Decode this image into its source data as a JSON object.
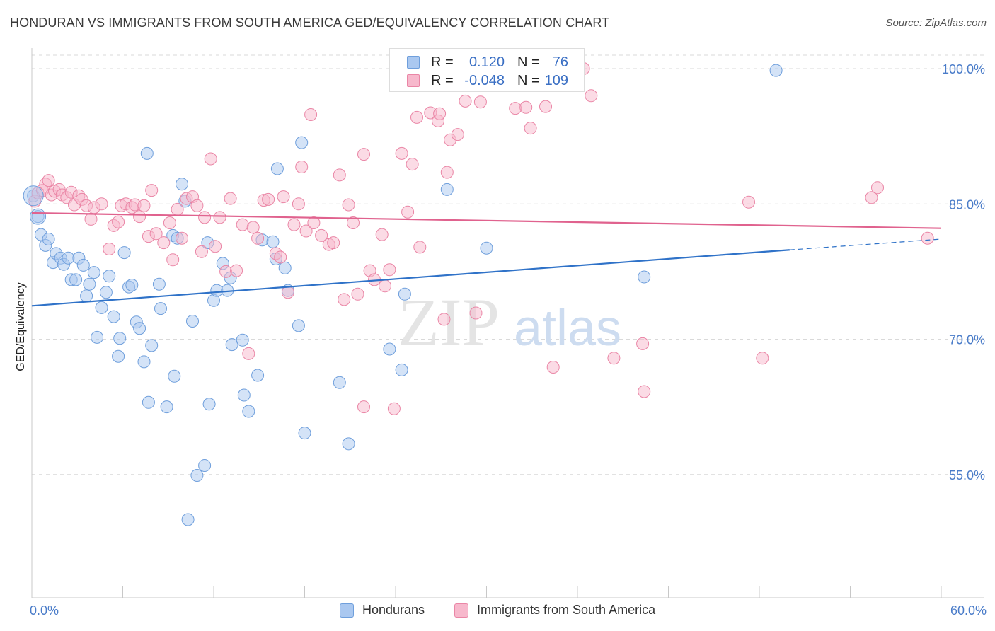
{
  "header": {
    "title": "HONDURAN VS IMMIGRANTS FROM SOUTH AMERICA GED/EQUIVALENCY CORRELATION CHART",
    "source": "Source: ZipAtlas.com"
  },
  "watermark": {
    "zip": "ZIP",
    "atlas": "atlas"
  },
  "legend_top": {
    "rows": [
      {
        "r_label": "R =",
        "r_value": "0.120",
        "n_label": "N =",
        "n_value": "76"
      },
      {
        "r_label": "R =",
        "r_value": "-0.048",
        "n_label": "N =",
        "n_value": "109"
      }
    ]
  },
  "legend_bottom": {
    "items": [
      {
        "label": "Hondurans"
      },
      {
        "label": "Immigrants from South America"
      }
    ]
  },
  "colors": {
    "blue_fill": "#aac8f0",
    "blue_stroke": "#6f9fdc",
    "blue_line": "#2f72c8",
    "pink_fill": "#f7b8cc",
    "pink_stroke": "#ea86a6",
    "pink_line": "#e0628e",
    "axis_text": "#4a7cc9",
    "grid": "#d9d9d9"
  },
  "chart_data": {
    "type": "scatter",
    "title": "HONDURAN VS IMMIGRANTS FROM SOUTH AMERICA GED/EQUIVALENCY CORRELATION CHART",
    "xlabel": "",
    "ylabel": "GED/Equivalency",
    "xlim": [
      0,
      60
    ],
    "ylim": [
      40,
      102
    ],
    "x_tick_labels": [
      "0.0%",
      "60.0%"
    ],
    "y_ticks": [
      55,
      70,
      85,
      100
    ],
    "y_tick_labels": [
      "55.0%",
      "70.0%",
      "85.0%",
      "100.0%"
    ],
    "series": [
      {
        "name": "Hondurans",
        "color": "#6f9fdc",
        "R": 0.12,
        "N": 76,
        "trend": {
          "x0": 0,
          "y0": 73.7,
          "x1": 50,
          "y1": 79.9,
          "dash_x1": 60,
          "dash_y1": 81.1
        },
        "points": [
          [
            0.1,
            85.9
          ],
          [
            0.4,
            83.6
          ],
          [
            0.6,
            81.6
          ],
          [
            0.9,
            80.4
          ],
          [
            1.1,
            81.1
          ],
          [
            1.4,
            78.5
          ],
          [
            1.6,
            79.5
          ],
          [
            1.9,
            79.0
          ],
          [
            2.1,
            78.3
          ],
          [
            2.4,
            79.0
          ],
          [
            2.6,
            76.6
          ],
          [
            2.9,
            76.6
          ],
          [
            3.1,
            79.0
          ],
          [
            3.4,
            78.2
          ],
          [
            3.6,
            74.8
          ],
          [
            3.8,
            76.1
          ],
          [
            4.1,
            77.4
          ],
          [
            4.3,
            70.2
          ],
          [
            4.6,
            73.5
          ],
          [
            4.9,
            75.2
          ],
          [
            5.1,
            77.0
          ],
          [
            5.4,
            72.5
          ],
          [
            5.7,
            68.1
          ],
          [
            5.8,
            70.1
          ],
          [
            6.1,
            79.6
          ],
          [
            6.4,
            75.8
          ],
          [
            6.6,
            76.0
          ],
          [
            6.9,
            71.9
          ],
          [
            7.1,
            71.2
          ],
          [
            7.4,
            67.5
          ],
          [
            7.6,
            90.6
          ],
          [
            7.7,
            63.0
          ],
          [
            7.9,
            69.3
          ],
          [
            8.4,
            76.1
          ],
          [
            8.5,
            73.4
          ],
          [
            8.9,
            62.5
          ],
          [
            9.3,
            81.5
          ],
          [
            9.4,
            65.9
          ],
          [
            9.6,
            81.2
          ],
          [
            9.9,
            87.2
          ],
          [
            10.1,
            85.3
          ],
          [
            10.3,
            50.0
          ],
          [
            10.6,
            72.0
          ],
          [
            10.9,
            54.9
          ],
          [
            11.4,
            56.0
          ],
          [
            11.6,
            80.7
          ],
          [
            11.7,
            62.8
          ],
          [
            12.0,
            74.3
          ],
          [
            12.2,
            75.4
          ],
          [
            12.6,
            78.4
          ],
          [
            12.9,
            75.4
          ],
          [
            13.1,
            76.8
          ],
          [
            13.2,
            69.4
          ],
          [
            13.9,
            69.9
          ],
          [
            14.0,
            63.8
          ],
          [
            14.3,
            62.0
          ],
          [
            14.9,
            66.0
          ],
          [
            15.2,
            81.0
          ],
          [
            15.9,
            80.8
          ],
          [
            16.1,
            78.9
          ],
          [
            16.2,
            88.9
          ],
          [
            16.7,
            77.9
          ],
          [
            16.9,
            75.4
          ],
          [
            17.6,
            71.5
          ],
          [
            17.8,
            91.8
          ],
          [
            18.0,
            59.6
          ],
          [
            20.3,
            65.2
          ],
          [
            20.9,
            58.4
          ],
          [
            23.6,
            68.9
          ],
          [
            24.4,
            66.6
          ],
          [
            24.6,
            75.0
          ],
          [
            27.4,
            86.6
          ],
          [
            28.1,
            100.0
          ],
          [
            30.0,
            80.1
          ],
          [
            40.4,
            76.9
          ],
          [
            49.1,
            99.8
          ]
        ]
      },
      {
        "name": "Immigrants from South America",
        "color": "#ea86a6",
        "R": -0.048,
        "N": 109,
        "trend": {
          "x0": 0,
          "y0": 84.0,
          "x1": 60,
          "y1": 82.3
        },
        "points": [
          [
            0.2,
            85.3
          ],
          [
            0.4,
            86.2
          ],
          [
            0.7,
            86.5
          ],
          [
            0.9,
            87.2
          ],
          [
            1.1,
            87.6
          ],
          [
            1.3,
            86.0
          ],
          [
            1.5,
            86.4
          ],
          [
            1.8,
            86.6
          ],
          [
            2.0,
            86.0
          ],
          [
            2.3,
            85.7
          ],
          [
            2.6,
            86.3
          ],
          [
            2.8,
            84.9
          ],
          [
            3.1,
            85.9
          ],
          [
            3.3,
            85.5
          ],
          [
            3.6,
            84.8
          ],
          [
            3.9,
            83.3
          ],
          [
            4.1,
            84.6
          ],
          [
            4.6,
            85.0
          ],
          [
            5.1,
            80.0
          ],
          [
            5.4,
            82.6
          ],
          [
            5.7,
            83.0
          ],
          [
            5.9,
            84.8
          ],
          [
            6.2,
            85.0
          ],
          [
            6.6,
            84.6
          ],
          [
            6.8,
            84.9
          ],
          [
            7.1,
            83.6
          ],
          [
            7.4,
            84.8
          ],
          [
            7.7,
            81.4
          ],
          [
            7.9,
            86.5
          ],
          [
            8.2,
            81.7
          ],
          [
            8.7,
            80.7
          ],
          [
            9.1,
            82.9
          ],
          [
            9.3,
            78.8
          ],
          [
            9.6,
            84.4
          ],
          [
            9.9,
            81.2
          ],
          [
            10.2,
            85.6
          ],
          [
            10.6,
            85.8
          ],
          [
            10.9,
            84.8
          ],
          [
            11.2,
            79.7
          ],
          [
            11.4,
            83.5
          ],
          [
            11.8,
            90.0
          ],
          [
            12.1,
            80.3
          ],
          [
            12.4,
            83.5
          ],
          [
            12.8,
            77.5
          ],
          [
            13.1,
            85.6
          ],
          [
            13.5,
            77.6
          ],
          [
            13.9,
            82.7
          ],
          [
            14.3,
            68.4
          ],
          [
            14.6,
            82.4
          ],
          [
            14.9,
            81.2
          ],
          [
            15.3,
            85.4
          ],
          [
            15.6,
            85.5
          ],
          [
            16.1,
            79.5
          ],
          [
            16.4,
            79.1
          ],
          [
            16.6,
            85.8
          ],
          [
            16.9,
            75.2
          ],
          [
            17.3,
            82.7
          ],
          [
            17.6,
            85.0
          ],
          [
            17.8,
            89.1
          ],
          [
            18.1,
            82.0
          ],
          [
            18.4,
            94.9
          ],
          [
            18.6,
            82.9
          ],
          [
            19.1,
            81.5
          ],
          [
            19.6,
            80.5
          ],
          [
            19.9,
            80.7
          ],
          [
            20.3,
            88.2
          ],
          [
            20.6,
            74.4
          ],
          [
            20.9,
            84.9
          ],
          [
            21.2,
            82.9
          ],
          [
            21.5,
            75.0
          ],
          [
            21.9,
            90.5
          ],
          [
            21.9,
            62.5
          ],
          [
            22.3,
            77.6
          ],
          [
            22.6,
            76.6
          ],
          [
            23.1,
            81.6
          ],
          [
            23.3,
            75.9
          ],
          [
            23.6,
            77.7
          ],
          [
            23.9,
            62.3
          ],
          [
            24.4,
            90.6
          ],
          [
            24.8,
            84.1
          ],
          [
            25.1,
            89.4
          ],
          [
            25.4,
            94.6
          ],
          [
            25.6,
            80.2
          ],
          [
            26.3,
            95.1
          ],
          [
            26.8,
            94.2
          ],
          [
            26.9,
            95.0
          ],
          [
            27.2,
            72.2
          ],
          [
            27.4,
            88.5
          ],
          [
            27.6,
            92.1
          ],
          [
            28.1,
            92.7
          ],
          [
            28.6,
            96.4
          ],
          [
            29.3,
            72.9
          ],
          [
            29.6,
            96.3
          ],
          [
            30.1,
            99.9
          ],
          [
            31.9,
            95.6
          ],
          [
            32.6,
            95.7
          ],
          [
            32.9,
            93.4
          ],
          [
            33.9,
            95.8
          ],
          [
            34.4,
            66.9
          ],
          [
            36.4,
            100.0
          ],
          [
            36.9,
            97.0
          ],
          [
            38.4,
            67.9
          ],
          [
            40.3,
            69.5
          ],
          [
            40.4,
            64.2
          ],
          [
            47.3,
            85.2
          ],
          [
            48.2,
            67.9
          ],
          [
            55.4,
            85.7
          ],
          [
            55.8,
            86.8
          ],
          [
            59.1,
            81.2
          ]
        ]
      }
    ]
  }
}
